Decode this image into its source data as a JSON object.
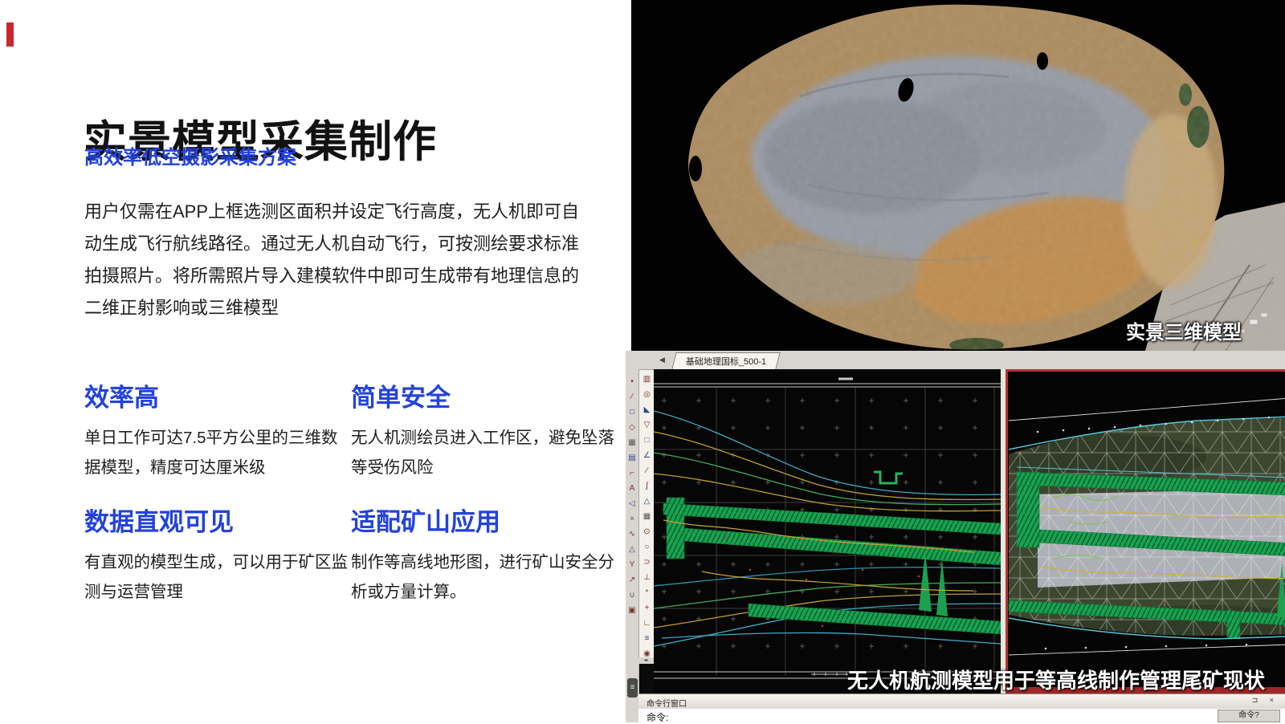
{
  "accent_blue": "#2342dd",
  "intro": {
    "title": "实景模型采集制作",
    "subtitle": "高效率低空摄影采集方案",
    "description": "用户仅需在APP上框选测区面积并设定飞行高度，无人机即可自动生成飞行航线路径。通过无人机自动飞行，可按测绘要求标准拍摄照片。将所需照片导入建模软件中即可生成带有地理信息的二维正射影响或三维模型"
  },
  "features": [
    {
      "title": "效率高",
      "body": "单日工作可达7.5平方公里的三维数据模型，精度可达厘米级"
    },
    {
      "title": "简单安全",
      "body": "无人机测绘员进入工作区，避免坠落等受伤风险"
    },
    {
      "title": "数据直观可见",
      "body": "有直观的模型生成，可以用于矿区监测与运营管理"
    },
    {
      "title": "适配矿山应用",
      "body": "制作等高线地形图，进行矿山安全分析或方量计算。"
    }
  ],
  "photo_panel": {
    "label": "实景三维模型"
  },
  "cad": {
    "tab_label": "基础地理国标_500-1",
    "tab_arrow_icon": "tab-scroll-left-icon",
    "caption": "无人机航测模型用于等高线制作管理尾矿现状",
    "cmd_window_title": "命令行窗口",
    "cmd_prompt": "命令:",
    "cmd_hint": "命令?",
    "cmd_bar_icons": "⊐ ×",
    "burger_icon": "≡",
    "toolbar_left_icons": [
      "point",
      "pen",
      "rect",
      "polygon",
      "hatch",
      "table",
      "flag",
      "text",
      "mirror",
      "cut",
      "curve",
      "mound",
      "fork",
      "arrow",
      "hook",
      "stamp"
    ],
    "toolbar_right_icons": [
      "book",
      "globe",
      "wedge",
      "cone",
      "square",
      "angle",
      "segment",
      "spline",
      "net",
      "grid",
      "target",
      "circle",
      "lasso",
      "perp",
      "star",
      "plus",
      "level",
      "stairs",
      "wheel"
    ]
  }
}
